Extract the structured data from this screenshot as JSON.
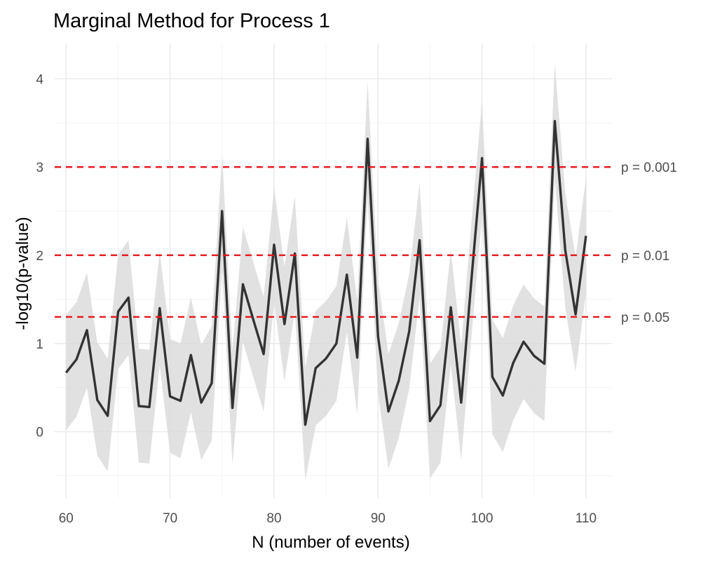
{
  "chart_data": {
    "type": "line",
    "title": "Marginal Method for Process 1",
    "xlabel": "N (number of events)",
    "ylabel": "-log10(p-value)",
    "xlim": [
      58.9,
      112.5
    ],
    "ylim": [
      -0.75,
      4.4
    ],
    "x_ticks": [
      60,
      70,
      80,
      90,
      100,
      110
    ],
    "y_ticks": [
      0,
      1,
      2,
      3,
      4
    ],
    "grid": true,
    "colors": {
      "line": "#333333",
      "ribbon": "#d9d9d9",
      "reference": "#e8141b"
    },
    "x": [
      60,
      61,
      62,
      63,
      64,
      65,
      66,
      67,
      68,
      69,
      70,
      71,
      72,
      73,
      74,
      75,
      76,
      77,
      78,
      79,
      80,
      81,
      82,
      83,
      84,
      85,
      86,
      87,
      88,
      89,
      90,
      91,
      92,
      93,
      94,
      95,
      96,
      97,
      98,
      99,
      100,
      101,
      102,
      103,
      104,
      105,
      106,
      107,
      108,
      109,
      110
    ],
    "y": [
      0.67,
      0.82,
      1.15,
      0.36,
      0.18,
      1.36,
      1.52,
      0.29,
      0.28,
      1.4,
      0.4,
      0.35,
      0.87,
      0.33,
      0.55,
      2.5,
      0.27,
      1.67,
      1.27,
      0.88,
      2.12,
      1.22,
      2.02,
      0.08,
      0.72,
      0.83,
      1.0,
      1.78,
      0.84,
      3.32,
      1.08,
      0.23,
      0.58,
      1.14,
      2.17,
      0.12,
      0.3,
      1.41,
      0.33,
      1.75,
      3.1,
      0.62,
      0.41,
      0.78,
      1.02,
      0.86,
      0.77,
      3.52,
      2.06,
      1.33,
      2.22
    ],
    "ymin": [
      0.02,
      0.17,
      0.5,
      -0.27,
      -0.45,
      0.71,
      0.87,
      -0.35,
      -0.36,
      0.75,
      -0.24,
      -0.3,
      0.22,
      -0.32,
      -0.1,
      1.85,
      -0.37,
      1.02,
      0.62,
      0.23,
      1.47,
      0.57,
      1.37,
      -0.55,
      0.07,
      0.18,
      0.35,
      1.13,
      0.2,
      2.67,
      0.43,
      -0.42,
      -0.07,
      0.49,
      1.52,
      -0.53,
      -0.35,
      0.76,
      -0.32,
      1.1,
      2.45,
      -0.03,
      -0.23,
      0.13,
      0.37,
      0.21,
      0.12,
      2.87,
      1.41,
      0.68,
      1.57
    ],
    "ymax": [
      1.32,
      1.47,
      1.8,
      1.01,
      0.83,
      2.01,
      2.17,
      0.94,
      0.93,
      2.05,
      1.05,
      1.0,
      1.52,
      0.98,
      1.2,
      3.15,
      0.92,
      2.32,
      1.92,
      1.53,
      2.77,
      1.87,
      2.67,
      0.73,
      1.37,
      1.48,
      1.65,
      2.43,
      1.49,
      3.97,
      1.73,
      0.88,
      1.23,
      1.79,
      2.82,
      0.77,
      0.95,
      2.06,
      0.98,
      2.4,
      3.75,
      1.27,
      1.06,
      1.43,
      1.67,
      1.51,
      1.42,
      4.17,
      2.71,
      1.98,
      2.87
    ],
    "reference_lines": [
      {
        "y": 3.0,
        "label": "p = 0.001"
      },
      {
        "y": 2.0,
        "label": "p = 0.01"
      },
      {
        "y": 1.301,
        "label": "p = 0.05"
      }
    ]
  }
}
